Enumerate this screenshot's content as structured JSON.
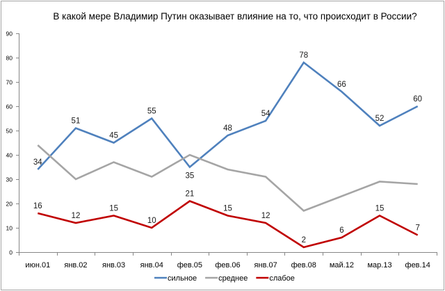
{
  "chart_data": {
    "type": "line",
    "title": "В какой мере Владимир Путин оказывает влияние на то, что происходит в России?",
    "xlabel": "",
    "ylabel": "",
    "categories": [
      "июн.01",
      "янв.02",
      "янв.03",
      "янв.04",
      "фев.05",
      "фев.06",
      "янв.07",
      "фев.08",
      "май.12",
      "мар.13",
      "фев.14"
    ],
    "ylim": [
      0,
      90
    ],
    "yticks": [
      0,
      10,
      20,
      30,
      40,
      50,
      60,
      70,
      80,
      90
    ],
    "grid": false,
    "legend": "bottom",
    "series": [
      {
        "name": "сильное",
        "color": "#4f81bd",
        "labeled": true,
        "values": [
          34,
          51,
          45,
          55,
          35,
          48,
          54,
          78,
          66,
          52,
          60
        ],
        "label_pos": [
          "above",
          "above",
          "above",
          "above",
          "below",
          "above",
          "above",
          "above",
          "above",
          "above",
          "above"
        ]
      },
      {
        "name": "среднее",
        "color": "#a5a5a5",
        "labeled": false,
        "values": [
          44,
          30,
          37,
          31,
          40,
          34,
          31,
          17,
          23,
          29,
          28
        ]
      },
      {
        "name": "слабое",
        "color": "#c00000",
        "labeled": true,
        "values": [
          16,
          12,
          15,
          10,
          21,
          15,
          12,
          2,
          6,
          15,
          7
        ],
        "label_pos": [
          "above",
          "above",
          "above",
          "above",
          "above",
          "above",
          "above",
          "above",
          "above",
          "above",
          "above"
        ]
      }
    ]
  }
}
